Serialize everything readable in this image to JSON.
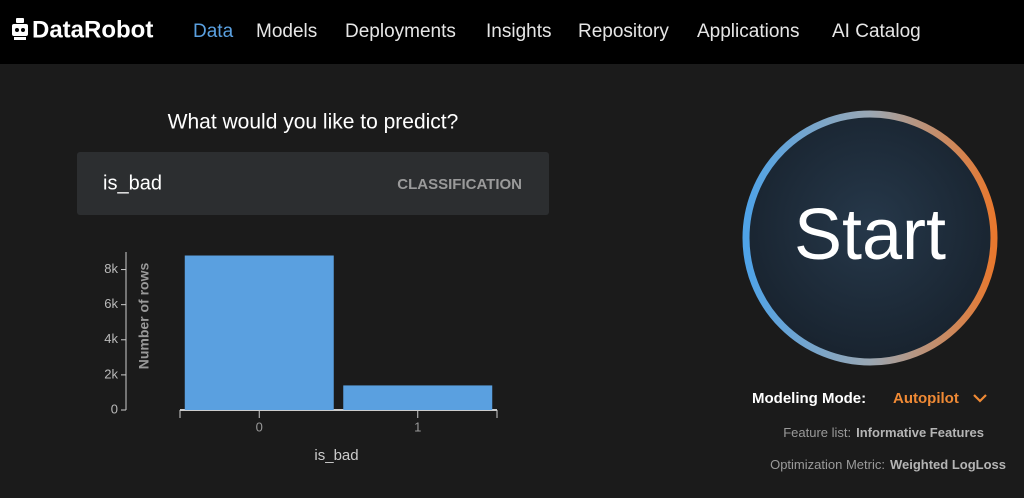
{
  "nav": {
    "logo": "DataRobot",
    "items": [
      "Data",
      "Models",
      "Deployments",
      "Insights",
      "Repository",
      "Applications",
      "AI Catalog"
    ]
  },
  "prompt": "What would you like to predict?",
  "target": {
    "name": "is_bad",
    "problem_type": "CLASSIFICATION"
  },
  "chart_data": {
    "type": "bar",
    "categories": [
      "0",
      "1"
    ],
    "values": [
      8800,
      1400
    ],
    "color": "#5aa0e0",
    "x_label": "is_bad",
    "y_label": "Number of rows",
    "ylim": [
      0,
      9000
    ],
    "yticks": [
      0,
      {
        "value": 2000,
        "label": "2k"
      },
      {
        "value": 4000,
        "label": "4k"
      },
      {
        "value": 6000,
        "label": "6k"
      },
      {
        "value": 8000,
        "label": "8k"
      }
    ]
  },
  "start_button": "Start",
  "modeling_mode": {
    "label": "Modeling Mode:",
    "value": "Autopilot"
  },
  "feature_list": {
    "label": "Feature list:",
    "value": "Informative Features"
  },
  "optimization_metric": {
    "label": "Optimization Metric:",
    "value": "Weighted LogLoss"
  }
}
